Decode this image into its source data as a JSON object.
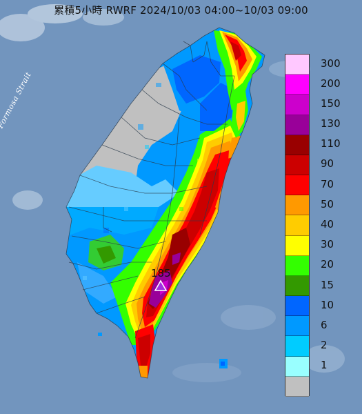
{
  "title": "累積5小時 RWRF 2024/10/03 04:00~10/03 09:00",
  "strait_label": "Formosa Strait",
  "peak": {
    "value": "185",
    "marker_icon": "triangle-icon",
    "color": "#a030e0"
  },
  "legend": [
    {
      "label": "300",
      "color": "#ffc8ff"
    },
    {
      "label": "200",
      "color": "#ff00ff"
    },
    {
      "label": "150",
      "color": "#cc00cc"
    },
    {
      "label": "130",
      "color": "#990099"
    },
    {
      "label": "110",
      "color": "#990000"
    },
    {
      "label": "90",
      "color": "#cc0000"
    },
    {
      "label": "70",
      "color": "#ff0000"
    },
    {
      "label": "50",
      "color": "#ff9900"
    },
    {
      "label": "40",
      "color": "#ffcc00"
    },
    {
      "label": "30",
      "color": "#ffff00"
    },
    {
      "label": "20",
      "color": "#33ff00"
    },
    {
      "label": "15",
      "color": "#339900"
    },
    {
      "label": "10",
      "color": "#0066ff"
    },
    {
      "label": "6",
      "color": "#0099ff"
    },
    {
      "label": "2",
      "color": "#00ccff"
    },
    {
      "label": "1",
      "color": "#99ffff"
    },
    {
      "label": "",
      "color": "#c0c0c0"
    }
  ]
}
